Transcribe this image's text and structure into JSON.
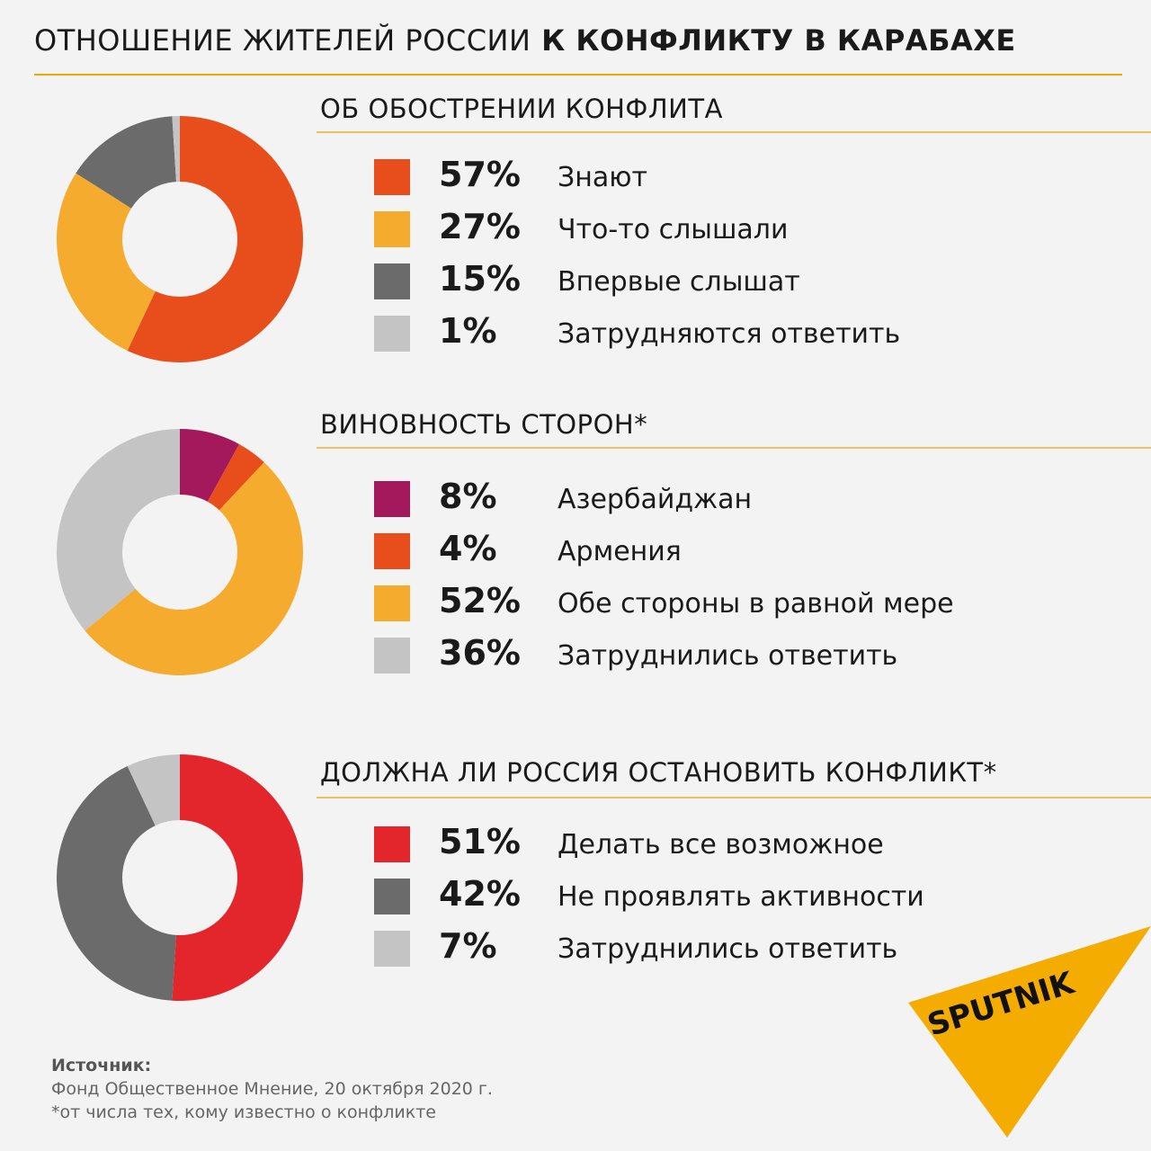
{
  "header": {
    "title_part1": "ОТНОШЕНИЕ ЖИТЕЛЕЙ РОССИИ",
    "title_part2": "К КОНФЛИКТУ В КАРАБАХЕ"
  },
  "chart_data": [
    {
      "type": "pie",
      "title": "ОБ ОБОСТРЕНИИ КОНФЛИТА",
      "series": [
        {
          "label": "Знают",
          "value": 57,
          "display": "57%",
          "color": "#e84e1b"
        },
        {
          "label": "Что-то слышали",
          "value": 27,
          "display": "27%",
          "color": "#f5ac2e"
        },
        {
          "label": "Впервые слышат",
          "value": 15,
          "display": "15%",
          "color": "#6b6b6b"
        },
        {
          "label": "Затрудняются ответить",
          "value": 1,
          "display": "1%",
          "color": "#c4c4c4"
        }
      ]
    },
    {
      "type": "pie",
      "title": "ВИНОВНОСТЬ СТОРОН*",
      "series": [
        {
          "label": "Азербайджан",
          "value": 8,
          "display": "8%",
          "color": "#a3195b"
        },
        {
          "label": "Армения",
          "value": 4,
          "display": "4%",
          "color": "#e84e1b"
        },
        {
          "label": "Обе стороны в равной мере",
          "value": 52,
          "display": "52%",
          "color": "#f5ac2e"
        },
        {
          "label": "Затруднились ответить",
          "value": 36,
          "display": "36%",
          "color": "#c4c4c4"
        }
      ]
    },
    {
      "type": "pie",
      "title": "ДОЛЖНА ЛИ РОССИЯ ОСТАНОВИТЬ КОНФЛИКТ*",
      "series": [
        {
          "label": "Делать все возможное",
          "value": 51,
          "display": "51%",
          "color": "#e3262b"
        },
        {
          "label": "Не проявлять активности",
          "value": 42,
          "display": "42%",
          "color": "#6b6b6b"
        },
        {
          "label": "Затруднились ответить",
          "value": 7,
          "display": "7%",
          "color": "#c4c4c4"
        }
      ]
    }
  ],
  "footer": {
    "source_label": "Источник:",
    "source_text": "Фонд Общественное Мнение, 20 октября 2020 г.",
    "footnote": "*от числа тех, кому известно о конфликте"
  },
  "logo": {
    "text": "SPUTNIK",
    "color": "#f5ac00"
  }
}
